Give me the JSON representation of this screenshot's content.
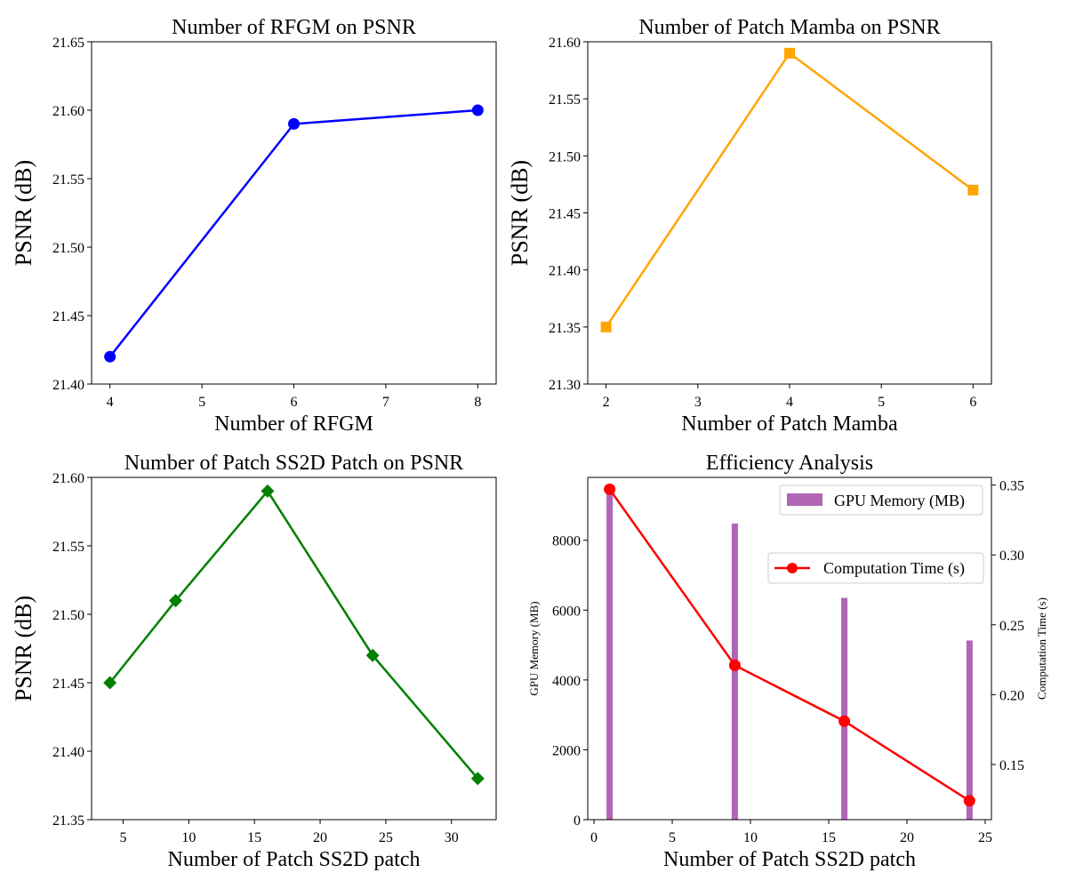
{
  "chart_data": [
    {
      "type": "line",
      "title": "Number of RFGM on PSNR",
      "xlabel": "Number of RFGM",
      "ylabel": "PSNR (dB)",
      "x": [
        4,
        6,
        8
      ],
      "y": [
        21.42,
        21.59,
        21.6
      ],
      "xlim": [
        3.8,
        8.2
      ],
      "ylim": [
        21.4,
        21.65
      ],
      "xticks": [
        4,
        5,
        6,
        7,
        8
      ],
      "xtick_labels": [
        "4",
        "5",
        "6",
        "7",
        "8"
      ],
      "yticks": [
        21.4,
        21.45,
        21.5,
        21.55,
        21.6,
        21.65
      ],
      "ytick_labels": [
        "21.40",
        "21.45",
        "21.50",
        "21.55",
        "21.60",
        "21.65"
      ],
      "color": "#0000ff",
      "marker": "circle",
      "grid": false
    },
    {
      "type": "line",
      "title": "Number of Patch Mamba on PSNR",
      "xlabel": "Number of Patch Mamba",
      "ylabel": "PSNR (dB)",
      "x": [
        2,
        4,
        6
      ],
      "y": [
        21.35,
        21.59,
        21.47
      ],
      "xlim": [
        1.8,
        6.2
      ],
      "ylim": [
        21.3,
        21.6
      ],
      "xticks": [
        2,
        3,
        4,
        5,
        6
      ],
      "xtick_labels": [
        "2",
        "3",
        "4",
        "5",
        "6"
      ],
      "yticks": [
        21.3,
        21.35,
        21.4,
        21.45,
        21.5,
        21.55,
        21.6
      ],
      "ytick_labels": [
        "21.30",
        "21.35",
        "21.40",
        "21.45",
        "21.50",
        "21.55",
        "21.60"
      ],
      "color": "#ffa500",
      "marker": "square",
      "grid": false
    },
    {
      "type": "line",
      "title": "Number of Patch SS2D Patch on PSNR",
      "xlabel": "Number of Patch SS2D patch",
      "ylabel": "PSNR (dB)",
      "x": [
        4,
        9,
        16,
        24,
        32
      ],
      "y": [
        21.45,
        21.51,
        21.59,
        21.47,
        21.38
      ],
      "xlim": [
        2.6,
        33.4
      ],
      "ylim": [
        21.35,
        21.6
      ],
      "xticks": [
        5,
        10,
        15,
        20,
        25,
        30
      ],
      "xtick_labels": [
        "5",
        "10",
        "15",
        "20",
        "25",
        "30"
      ],
      "yticks": [
        21.35,
        21.4,
        21.45,
        21.5,
        21.55,
        21.6
      ],
      "ytick_labels": [
        "21.35",
        "21.40",
        "21.45",
        "21.50",
        "21.55",
        "21.60"
      ],
      "color": "#008000",
      "marker": "diamond",
      "grid": false
    },
    {
      "type": "bar+line",
      "title": "Efficiency Analysis",
      "xlabel": "Number of Patch SS2D patch",
      "ylabel_left": "GPU Memory (MB)",
      "ylabel_right": "Computation Time (s)",
      "x": [
        1,
        9,
        16,
        24
      ],
      "xlim": [
        -0.4,
        25.4
      ],
      "xticks": [
        0,
        5,
        10,
        15,
        20,
        25
      ],
      "xtick_labels": [
        "0",
        "5",
        "10",
        "15",
        "20",
        "25"
      ],
      "bar_width": 0.4,
      "series": [
        {
          "name": "GPU Memory (MB)",
          "type": "bar",
          "axis": "left",
          "values": [
            9400,
            8480,
            6350,
            5130
          ],
          "color": "#b066b5"
        },
        {
          "name": "Computation Time (s)",
          "type": "line",
          "axis": "right",
          "values": [
            0.347,
            0.221,
            0.181,
            0.124
          ],
          "color": "#ff0000",
          "marker": "circle"
        }
      ],
      "ylim_left": [
        0,
        9800
      ],
      "ylim_right": [
        0.1105,
        0.3555
      ],
      "yticks_left": [
        0,
        2000,
        4000,
        6000,
        8000
      ],
      "ytick_labels_left": [
        "0",
        "2000",
        "4000",
        "6000",
        "8000"
      ],
      "yticks_right": [
        0.15,
        0.2,
        0.25,
        0.3,
        0.35
      ],
      "ytick_labels_right": [
        "0.15",
        "0.20",
        "0.25",
        "0.30",
        "0.35"
      ],
      "legend_bar_label": "GPU Memory (MB)",
      "legend_line_label": "Computation Time (s)",
      "legend_placement": "upper-right",
      "grid": false
    }
  ]
}
